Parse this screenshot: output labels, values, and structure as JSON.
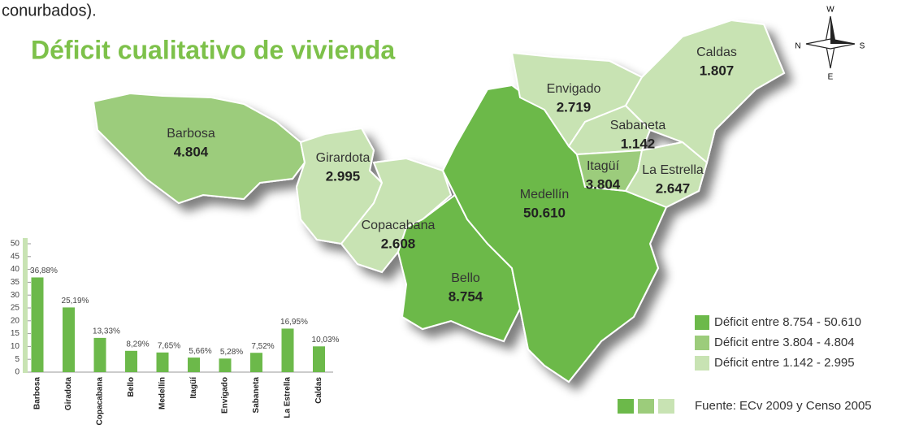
{
  "header_text": "conurbados).",
  "title": "Déficit cualitativo de vivienda",
  "compass": {
    "north": "N",
    "south": "S",
    "west": "W",
    "east": "E"
  },
  "map": {
    "regions": [
      {
        "name": "Barbosa",
        "value": "4.804",
        "color": "#9ccc7b"
      },
      {
        "name": "Girardota",
        "value": "2.995",
        "color": "#c8e3b3"
      },
      {
        "name": "Copacabana",
        "value": "2.608",
        "color": "#c8e3b3"
      },
      {
        "name": "Bello",
        "value": "8.754",
        "color": "#6cb94a"
      },
      {
        "name": "Medellín",
        "value": "50.610",
        "color": "#6cb94a"
      },
      {
        "name": "Envigado",
        "value": "2.719",
        "color": "#c8e3b3"
      },
      {
        "name": "Sabaneta",
        "value": "1.142",
        "color": "#c8e3b3"
      },
      {
        "name": "Itagüí",
        "value": "3.804",
        "color": "#9ccc7b"
      },
      {
        "name": "La Estrella",
        "value": "2.647",
        "color": "#c8e3b3"
      },
      {
        "name": "Caldas",
        "value": "1.807",
        "color": "#c8e3b3"
      }
    ]
  },
  "legend": [
    {
      "label": "Déficit entre 8.754 - 50.610",
      "color": "#6cb94a"
    },
    {
      "label": "Déficit entre 3.804 - 4.804",
      "color": "#9ccc7b"
    },
    {
      "label": "Déficit entre 1.142 - 2.995",
      "color": "#c8e3b3"
    }
  ],
  "source": "Fuente: ECv 2009 y Censo 2005",
  "chart_data": {
    "type": "bar",
    "categories": [
      "Barbosa",
      "Giradota",
      "Copacabana",
      "Bello",
      "Medellín",
      "Itagüí",
      "Envigado",
      "Sabaneta",
      "La Estrella",
      "Caldas"
    ],
    "values": [
      36.88,
      25.19,
      13.33,
      8.29,
      7.65,
      5.66,
      5.28,
      7.52,
      16.95,
      10.03
    ],
    "value_labels": [
      "36,88%",
      "25,19%",
      "13,33%",
      "8,29%",
      "7,65%",
      "5,66%",
      "5,28%",
      "7,52%",
      "16,95%",
      "10,03%"
    ],
    "color": "#6cb94a",
    "ylim": [
      0,
      50
    ],
    "yticks": [
      0,
      5,
      10,
      15,
      20,
      25,
      30,
      35,
      40,
      45,
      50
    ]
  }
}
